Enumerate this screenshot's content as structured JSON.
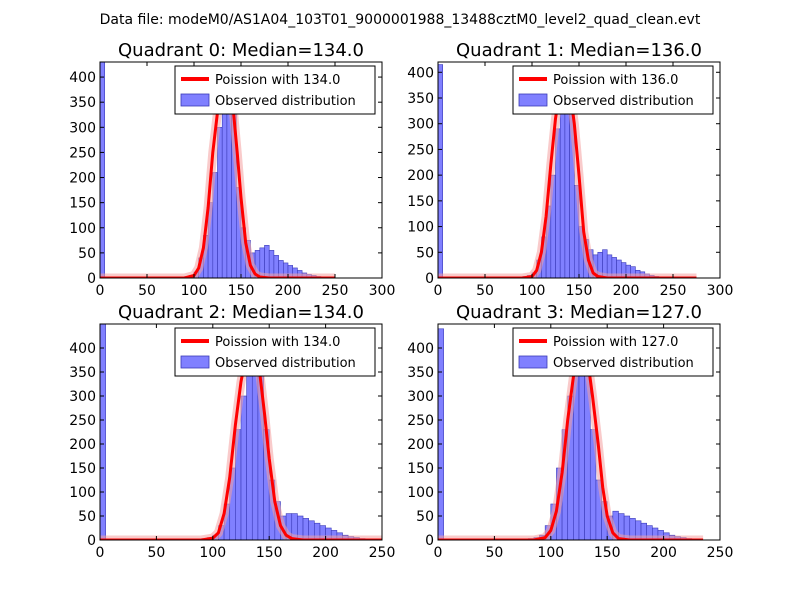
{
  "figure_title": "Data file: modeM0/AS1A04_103T01_9000001988_13488cztM0_level2_quad_clean.evt",
  "colors": {
    "hist_fill": "#8080ff",
    "hist_edge": "#3a3ab8",
    "poisson_line": "#ff0000",
    "poisson_highlight": "#f4a0a0",
    "legend_edge": "#000000"
  },
  "chart_data": [
    {
      "type": "bar",
      "title": "Quadrant 0: Median=134.0",
      "median": 134,
      "xlim": [
        0,
        300
      ],
      "ylim": [
        0,
        430
      ],
      "xticks": [
        "0",
        "50",
        "100",
        "150",
        "200",
        "250",
        "300"
      ],
      "yticks": [
        "0",
        "50",
        "100",
        "150",
        "200",
        "250",
        "300",
        "350",
        "400"
      ],
      "xtick_values": [
        0,
        50,
        100,
        150,
        200,
        250,
        300
      ],
      "ytick_values": [
        0,
        50,
        100,
        150,
        200,
        250,
        300,
        350,
        400
      ],
      "legend": [
        "Poission with 134.0",
        "Observed distribution"
      ],
      "bin_width": 5,
      "bins": [
        [
          0,
          430
        ],
        [
          85,
          2
        ],
        [
          90,
          3
        ],
        [
          95,
          5
        ],
        [
          100,
          12
        ],
        [
          105,
          40
        ],
        [
          110,
          85
        ],
        [
          115,
          150
        ],
        [
          120,
          210
        ],
        [
          125,
          300
        ],
        [
          130,
          370
        ],
        [
          135,
          415
        ],
        [
          140,
          330
        ],
        [
          145,
          180
        ],
        [
          150,
          100
        ],
        [
          155,
          75
        ],
        [
          160,
          50
        ],
        [
          165,
          55
        ],
        [
          170,
          60
        ],
        [
          175,
          65
        ],
        [
          180,
          55
        ],
        [
          185,
          45
        ],
        [
          190,
          35
        ],
        [
          195,
          30
        ],
        [
          200,
          25
        ],
        [
          205,
          20
        ],
        [
          210,
          15
        ],
        [
          215,
          10
        ],
        [
          220,
          7
        ],
        [
          225,
          5
        ],
        [
          230,
          3
        ],
        [
          235,
          2
        ]
      ],
      "poisson": [
        [
          0,
          0
        ],
        [
          90,
          0
        ],
        [
          100,
          5
        ],
        [
          105,
          20
        ],
        [
          110,
          60
        ],
        [
          115,
          140
        ],
        [
          120,
          250
        ],
        [
          125,
          330
        ],
        [
          130,
          385
        ],
        [
          134,
          400
        ],
        [
          138,
          380
        ],
        [
          142,
          330
        ],
        [
          146,
          250
        ],
        [
          150,
          160
        ],
        [
          155,
          70
        ],
        [
          160,
          25
        ],
        [
          165,
          8
        ],
        [
          170,
          2
        ],
        [
          180,
          0
        ],
        [
          250,
          0
        ]
      ]
    },
    {
      "type": "bar",
      "title": "Quadrant 1: Median=136.0",
      "median": 136,
      "xlim": [
        0,
        300
      ],
      "ylim": [
        0,
        420
      ],
      "xticks": [
        "0",
        "50",
        "100",
        "150",
        "200",
        "250",
        "300"
      ],
      "yticks": [
        "0",
        "50",
        "100",
        "150",
        "200",
        "250",
        "300",
        "350",
        "400"
      ],
      "xtick_values": [
        0,
        50,
        100,
        150,
        200,
        250,
        300
      ],
      "ytick_values": [
        0,
        50,
        100,
        150,
        200,
        250,
        300,
        350,
        400
      ],
      "legend": [
        "Poission with 136.0",
        "Observed distribution"
      ],
      "bin_width": 5,
      "bins": [
        [
          0,
          415
        ],
        [
          85,
          2
        ],
        [
          90,
          3
        ],
        [
          95,
          5
        ],
        [
          100,
          10
        ],
        [
          105,
          35
        ],
        [
          110,
          80
        ],
        [
          115,
          140
        ],
        [
          120,
          200
        ],
        [
          125,
          290
        ],
        [
          130,
          355
        ],
        [
          135,
          400
        ],
        [
          140,
          320
        ],
        [
          145,
          180
        ],
        [
          150,
          100
        ],
        [
          155,
          75
        ],
        [
          160,
          55
        ],
        [
          165,
          45
        ],
        [
          170,
          50
        ],
        [
          175,
          55
        ],
        [
          180,
          45
        ],
        [
          185,
          40
        ],
        [
          190,
          35
        ],
        [
          195,
          30
        ],
        [
          200,
          25
        ],
        [
          205,
          22
        ],
        [
          210,
          15
        ],
        [
          215,
          12
        ],
        [
          220,
          8
        ],
        [
          225,
          5
        ],
        [
          230,
          3
        ],
        [
          235,
          2
        ]
      ],
      "poisson": [
        [
          0,
          0
        ],
        [
          90,
          0
        ],
        [
          100,
          3
        ],
        [
          105,
          15
        ],
        [
          110,
          50
        ],
        [
          115,
          120
        ],
        [
          120,
          220
        ],
        [
          125,
          310
        ],
        [
          130,
          370
        ],
        [
          136,
          395
        ],
        [
          140,
          370
        ],
        [
          145,
          300
        ],
        [
          150,
          200
        ],
        [
          155,
          90
        ],
        [
          160,
          35
        ],
        [
          165,
          10
        ],
        [
          170,
          3
        ],
        [
          180,
          0
        ],
        [
          275,
          0
        ]
      ]
    },
    {
      "type": "bar",
      "title": "Quadrant 2: Median=134.0",
      "median": 134,
      "xlim": [
        0,
        250
      ],
      "ylim": [
        0,
        450
      ],
      "xticks": [
        "0",
        "50",
        "100",
        "150",
        "200",
        "250"
      ],
      "yticks": [
        "0",
        "50",
        "100",
        "150",
        "200",
        "250",
        "300",
        "350",
        "400"
      ],
      "xtick_values": [
        0,
        50,
        100,
        150,
        200,
        250
      ],
      "ytick_values": [
        0,
        50,
        100,
        150,
        200,
        250,
        300,
        350,
        400
      ],
      "legend": [
        "Poission with 134.0",
        "Observed distribution"
      ],
      "bin_width": 5,
      "bins": [
        [
          0,
          450
        ],
        [
          85,
          2
        ],
        [
          90,
          3
        ],
        [
          95,
          5
        ],
        [
          100,
          10
        ],
        [
          105,
          30
        ],
        [
          110,
          75
        ],
        [
          115,
          150
        ],
        [
          120,
          230
        ],
        [
          125,
          300
        ],
        [
          130,
          380
        ],
        [
          135,
          430
        ],
        [
          140,
          370
        ],
        [
          145,
          230
        ],
        [
          150,
          125
        ],
        [
          155,
          80
        ],
        [
          160,
          50
        ],
        [
          165,
          55
        ],
        [
          170,
          55
        ],
        [
          175,
          50
        ],
        [
          180,
          45
        ],
        [
          185,
          40
        ],
        [
          190,
          35
        ],
        [
          195,
          30
        ],
        [
          200,
          25
        ],
        [
          205,
          20
        ],
        [
          210,
          15
        ],
        [
          215,
          10
        ],
        [
          220,
          7
        ],
        [
          225,
          5
        ],
        [
          230,
          3
        ]
      ],
      "poisson": [
        [
          0,
          0
        ],
        [
          90,
          0
        ],
        [
          100,
          4
        ],
        [
          105,
          15
        ],
        [
          110,
          55
        ],
        [
          115,
          130
        ],
        [
          120,
          240
        ],
        [
          125,
          330
        ],
        [
          130,
          390
        ],
        [
          134,
          410
        ],
        [
          138,
          390
        ],
        [
          142,
          340
        ],
        [
          146,
          260
        ],
        [
          150,
          170
        ],
        [
          155,
          80
        ],
        [
          160,
          30
        ],
        [
          165,
          10
        ],
        [
          170,
          3
        ],
        [
          180,
          0
        ],
        [
          250,
          0
        ]
      ]
    },
    {
      "type": "bar",
      "title": "Quadrant 3: Median=127.0",
      "median": 127,
      "xlim": [
        0,
        250
      ],
      "ylim": [
        0,
        450
      ],
      "xticks": [
        "0",
        "50",
        "100",
        "150",
        "200",
        "250"
      ],
      "yticks": [
        "0",
        "50",
        "100",
        "150",
        "200",
        "250",
        "300",
        "350",
        "400"
      ],
      "xtick_values": [
        0,
        50,
        100,
        150,
        200,
        250
      ],
      "ytick_values": [
        0,
        50,
        100,
        150,
        200,
        250,
        300,
        350,
        400
      ],
      "legend": [
        "Poission with 127.0",
        "Observed distribution"
      ],
      "bin_width": 5,
      "bins": [
        [
          0,
          440
        ],
        [
          75,
          2
        ],
        [
          80,
          3
        ],
        [
          85,
          5
        ],
        [
          90,
          10
        ],
        [
          95,
          30
        ],
        [
          100,
          75
        ],
        [
          105,
          150
        ],
        [
          110,
          230
        ],
        [
          115,
          300
        ],
        [
          120,
          380
        ],
        [
          125,
          430
        ],
        [
          130,
          370
        ],
        [
          135,
          230
        ],
        [
          140,
          125
        ],
        [
          145,
          80
        ],
        [
          150,
          50
        ],
        [
          155,
          60
        ],
        [
          160,
          55
        ],
        [
          165,
          50
        ],
        [
          170,
          45
        ],
        [
          175,
          40
        ],
        [
          180,
          35
        ],
        [
          185,
          30
        ],
        [
          190,
          25
        ],
        [
          195,
          20
        ],
        [
          200,
          15
        ],
        [
          205,
          10
        ],
        [
          210,
          7
        ],
        [
          215,
          5
        ],
        [
          220,
          3
        ]
      ],
      "poisson": [
        [
          0,
          0
        ],
        [
          85,
          0
        ],
        [
          95,
          5
        ],
        [
          100,
          20
        ],
        [
          105,
          60
        ],
        [
          110,
          140
        ],
        [
          115,
          250
        ],
        [
          120,
          340
        ],
        [
          127,
          405
        ],
        [
          133,
          370
        ],
        [
          137,
          300
        ],
        [
          142,
          200
        ],
        [
          146,
          110
        ],
        [
          150,
          50
        ],
        [
          155,
          15
        ],
        [
          160,
          3
        ],
        [
          170,
          0
        ],
        [
          235,
          0
        ]
      ]
    }
  ]
}
